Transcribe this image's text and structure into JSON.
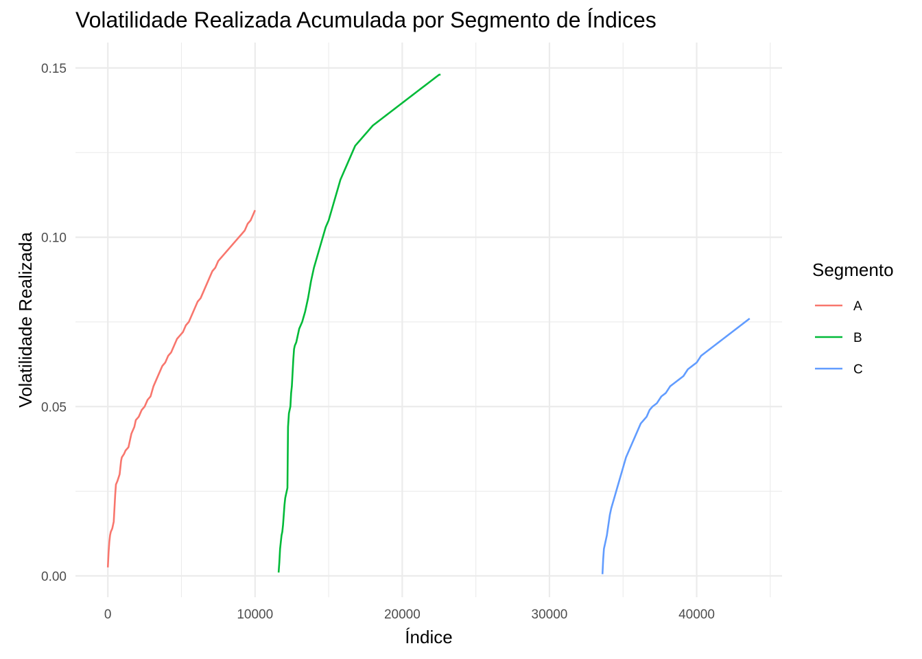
{
  "chart_data": {
    "type": "line",
    "title": "Volatilidade Realizada Acumulada por Segmento de Índices",
    "xlabel": "Índice",
    "ylabel": "Volatilidade Realizada",
    "xlim": [
      -2200,
      45800
    ],
    "ylim": [
      -0.0063,
      0.1575
    ],
    "x_ticks": [
      0,
      10000,
      20000,
      30000,
      40000
    ],
    "x_tick_labels": [
      "0",
      "10000",
      "20000",
      "30000",
      "40000"
    ],
    "y_ticks": [
      0.0,
      0.05,
      0.1,
      0.15
    ],
    "y_tick_labels": [
      "0.00",
      "0.05",
      "0.10",
      "0.15"
    ],
    "grid": true,
    "legend": {
      "title": "Segmento",
      "position": "right"
    },
    "series": [
      {
        "name": "A",
        "color": "#F8766D",
        "x": [
          0,
          50,
          100,
          150,
          200,
          300,
          400,
          500,
          550,
          650,
          800,
          900,
          950,
          1100,
          1200,
          1400,
          1600,
          1800,
          1900,
          2100,
          2300,
          2500,
          2700,
          2900,
          3100,
          3300,
          3500,
          3700,
          3900,
          4100,
          4300,
          4500,
          4700,
          4900,
          5100,
          5300,
          5500,
          5700,
          5900,
          6100,
          6300,
          6500,
          6700,
          6900,
          7100,
          7300,
          7500,
          7700,
          7900,
          8100,
          8300,
          8500,
          8700,
          8900,
          9100,
          9300,
          9500,
          9700,
          9900,
          10000
        ],
        "y": [
          0.0025,
          0.007,
          0.01,
          0.012,
          0.013,
          0.014,
          0.016,
          0.024,
          0.027,
          0.028,
          0.03,
          0.034,
          0.035,
          0.036,
          0.037,
          0.038,
          0.042,
          0.044,
          0.046,
          0.047,
          0.049,
          0.05,
          0.052,
          0.053,
          0.056,
          0.058,
          0.06,
          0.062,
          0.063,
          0.065,
          0.066,
          0.068,
          0.07,
          0.071,
          0.072,
          0.074,
          0.075,
          0.077,
          0.079,
          0.081,
          0.082,
          0.084,
          0.086,
          0.088,
          0.09,
          0.091,
          0.093,
          0.094,
          0.095,
          0.096,
          0.097,
          0.098,
          0.099,
          0.1,
          0.101,
          0.102,
          0.104,
          0.105,
          0.107,
          0.108
        ]
      },
      {
        "name": "B",
        "color": "#00BA38",
        "x": [
          11600,
          11650,
          11700,
          11750,
          11800,
          11850,
          11900,
          11950,
          12000,
          12050,
          12100,
          12150,
          12200,
          12220,
          12240,
          12300,
          12400,
          12450,
          12500,
          12550,
          12600,
          12650,
          12700,
          12800,
          12900,
          13000,
          13200,
          13400,
          13600,
          13800,
          14000,
          14200,
          14400,
          14600,
          14800,
          15000,
          15200,
          15400,
          15600,
          15800,
          16000,
          16200,
          16400,
          16600,
          16800,
          17000,
          17200,
          17400,
          17600,
          17800,
          18000,
          18300,
          18600,
          18900,
          19200,
          19500,
          19800,
          20100,
          20400,
          20700,
          21000,
          21300,
          21600,
          21900,
          22200,
          22500,
          22600
        ],
        "y": [
          0.001,
          0.004,
          0.008,
          0.01,
          0.012,
          0.013,
          0.015,
          0.018,
          0.021,
          0.023,
          0.024,
          0.025,
          0.026,
          0.035,
          0.044,
          0.048,
          0.05,
          0.054,
          0.056,
          0.06,
          0.064,
          0.067,
          0.068,
          0.069,
          0.071,
          0.073,
          0.075,
          0.078,
          0.082,
          0.087,
          0.091,
          0.094,
          0.097,
          0.1,
          0.103,
          0.105,
          0.108,
          0.111,
          0.114,
          0.117,
          0.119,
          0.121,
          0.123,
          0.125,
          0.127,
          0.128,
          0.129,
          0.13,
          0.131,
          0.132,
          0.133,
          0.134,
          0.135,
          0.136,
          0.137,
          0.138,
          0.139,
          0.14,
          0.141,
          0.142,
          0.143,
          0.144,
          0.145,
          0.146,
          0.147,
          0.148,
          0.148
        ]
      },
      {
        "name": "C",
        "color": "#619CFF",
        "x": [
          33600,
          33650,
          33700,
          33800,
          33900,
          34000,
          34100,
          34200,
          34400,
          34600,
          34800,
          35000,
          35200,
          35400,
          35600,
          35800,
          36000,
          36200,
          36400,
          36600,
          36800,
          37000,
          37300,
          37600,
          37900,
          38200,
          38500,
          38800,
          39100,
          39400,
          39700,
          40000,
          40300,
          40600,
          40900,
          41200,
          41500,
          41800,
          42100,
          42400,
          42700,
          43000,
          43300,
          43600
        ],
        "y": [
          0.0005,
          0.005,
          0.008,
          0.01,
          0.012,
          0.015,
          0.018,
          0.02,
          0.023,
          0.026,
          0.029,
          0.032,
          0.035,
          0.037,
          0.039,
          0.041,
          0.043,
          0.045,
          0.046,
          0.047,
          0.049,
          0.05,
          0.051,
          0.053,
          0.054,
          0.056,
          0.057,
          0.058,
          0.059,
          0.061,
          0.062,
          0.063,
          0.065,
          0.066,
          0.067,
          0.068,
          0.069,
          0.07,
          0.071,
          0.072,
          0.073,
          0.074,
          0.075,
          0.076
        ]
      }
    ]
  }
}
